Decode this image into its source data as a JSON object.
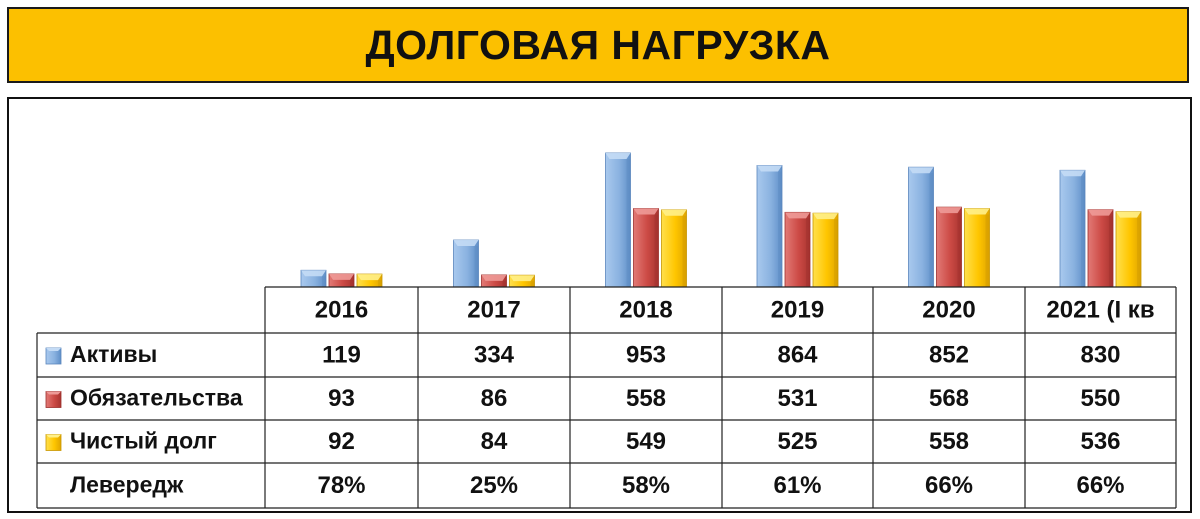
{
  "title": "ДОЛГОВАЯ НАГРУЗКА",
  "chart_data": {
    "type": "bar",
    "categories": [
      "2016",
      "2017",
      "2018",
      "2019",
      "2020",
      "2021 (I кв"
    ],
    "series": [
      {
        "name": "Активы",
        "values": [
          119,
          334,
          953,
          864,
          852,
          830
        ],
        "color": "#8db4e2"
      },
      {
        "name": "Обязательства",
        "values": [
          93,
          86,
          558,
          531,
          568,
          550
        ],
        "color": "#d9534f"
      },
      {
        "name": "Чистый долг",
        "values": [
          92,
          84,
          549,
          525,
          558,
          536
        ],
        "color": "#ffcc00"
      }
    ],
    "extra_row": {
      "name": "Левередж",
      "values": [
        "78%",
        "25%",
        "58%",
        "61%",
        "66%",
        "66%"
      ]
    },
    "ylim": [
      0,
      1000
    ],
    "legend": "table-left",
    "grid": false
  }
}
